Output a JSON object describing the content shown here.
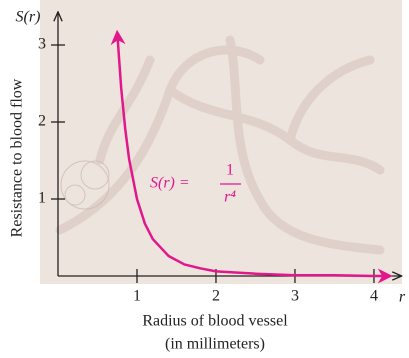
{
  "chart_data": {
    "type": "line",
    "xlabel": [
      "Radius of blood vessel",
      "(in millimeters)"
    ],
    "ylabel": "Resistance to blood flow",
    "x_axis_name": "r",
    "y_axis_name": "S(r)",
    "annotation": {
      "lhs": "S(r) =",
      "numerator": "1",
      "denominator": "r⁴"
    },
    "x": [
      0.75,
      0.8,
      0.85,
      0.9,
      1,
      1.1,
      1.2,
      1.4,
      1.6,
      1.8,
      2,
      2.5,
      3,
      3.5,
      4,
      4.2
    ],
    "series": [
      {
        "color": "#e3178c",
        "values": [
          3.16,
          2.44,
          1.92,
          1.52,
          1,
          0.68,
          0.48,
          0.26,
          0.15,
          0.1,
          0.06,
          0.03,
          0.01,
          0.01,
          0.0,
          0.0
        ]
      }
    ],
    "xlim": [
      0,
      4.35
    ],
    "ylim": [
      0,
      3.43
    ],
    "xticks": [
      1,
      2,
      3,
      4
    ],
    "yticks": [
      1,
      2,
      3
    ],
    "grid": false
  }
}
